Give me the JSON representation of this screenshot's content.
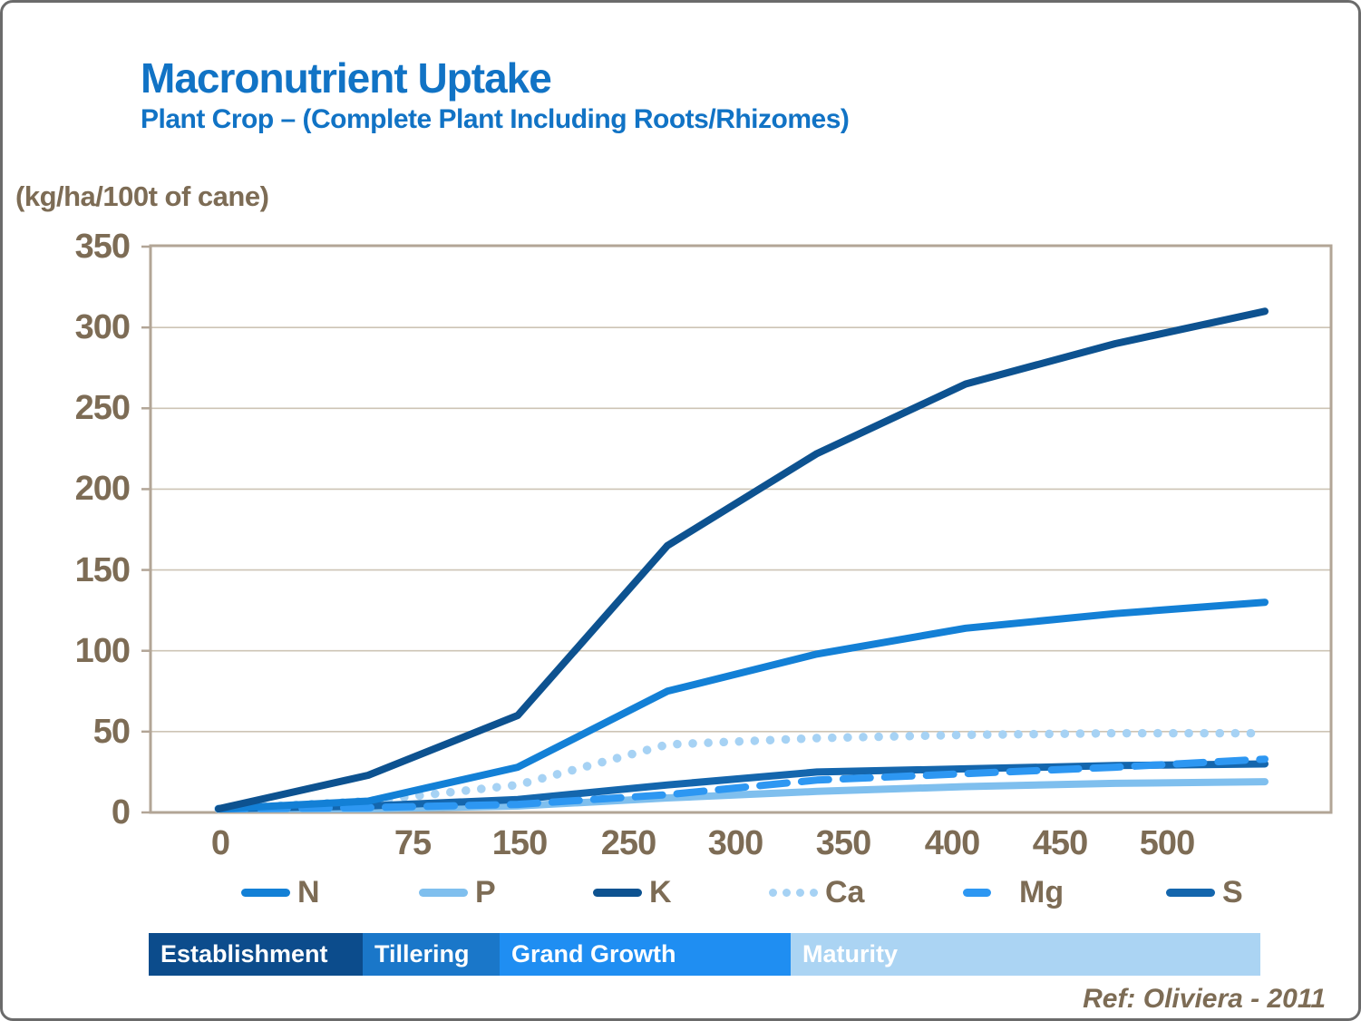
{
  "header": {
    "title": "Macronutrient Uptake",
    "subtitle": "Plant Crop – (Complete Plant Including Roots/Rhizomes)"
  },
  "units_label": "(kg/ha/100t of cane)",
  "footer": {
    "reference": "Ref: Oliviera - 2011"
  },
  "colors": {
    "title_blue": "#1173c5",
    "axis_text_brown": "#7d6c55",
    "plot_frame": "#b2a596",
    "gridline": "#cdc4b5"
  },
  "chart_data": {
    "type": "line",
    "title": "Macronutrient Uptake",
    "ylabel": "(kg/ha/100t of cane)",
    "xlabel": "",
    "ylim": [
      0,
      350
    ],
    "y_ticks": [
      0,
      50,
      100,
      150,
      200,
      250,
      300,
      350
    ],
    "x_tick_labels": [
      "0",
      "75",
      "150",
      "250",
      "300",
      "350",
      "400",
      "450",
      "500"
    ],
    "grid": "horizontal",
    "legend_position": "bottom",
    "points_note": "each series has 8 evenly spaced sample points across the x-axis",
    "series": [
      {
        "name": "N",
        "color": "#1380d6",
        "style": "solid",
        "values": [
          0,
          7,
          28,
          75,
          98,
          114,
          123,
          130
        ]
      },
      {
        "name": "P",
        "color": "#7fbfee",
        "style": "solid",
        "values": [
          0,
          2,
          4,
          9,
          13,
          16,
          18,
          19
        ]
      },
      {
        "name": "K",
        "color": "#0d5290",
        "style": "solid",
        "values": [
          0,
          23,
          60,
          165,
          222,
          265,
          290,
          310
        ]
      },
      {
        "name": "Ca",
        "color": "#a6d2f4",
        "style": "dotted",
        "values": [
          0,
          7,
          17,
          42,
          46,
          48,
          49,
          49
        ]
      },
      {
        "name": "Mg",
        "color": "#2d97f2",
        "style": "dashed",
        "values": [
          0,
          3,
          5,
          11,
          20,
          24,
          28,
          33
        ]
      },
      {
        "name": "S",
        "color": "#1466ad",
        "style": "solid",
        "values": [
          0,
          4,
          8,
          17,
          25,
          27,
          29,
          30
        ]
      }
    ]
  },
  "phases": [
    {
      "label": "Establishment",
      "color": "#0c4c8c"
    },
    {
      "label": "Tillering",
      "color": "#1a77c9"
    },
    {
      "label": "Grand Growth",
      "color": "#1f8ef2"
    },
    {
      "label": "Maturity",
      "color": "#abd4f3"
    }
  ]
}
